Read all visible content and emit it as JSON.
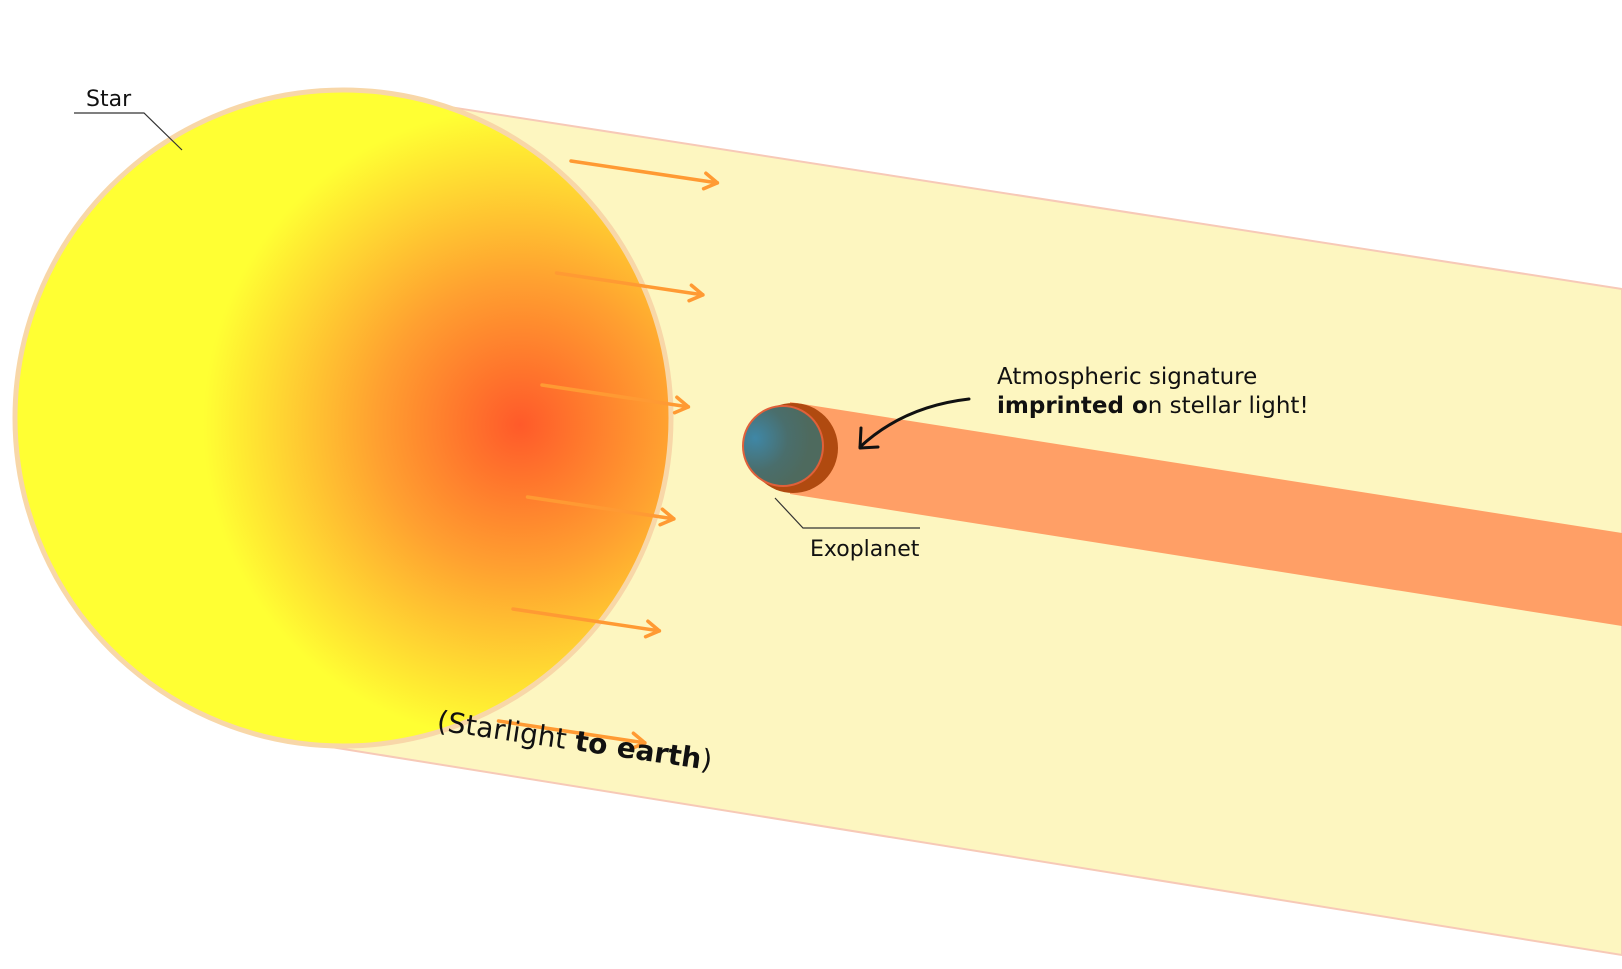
{
  "labels": {
    "star": "Star",
    "exoplanet": "Exoplanet",
    "signature_line1": "Atmospheric signature",
    "signature_line2_bold": "imprinted o",
    "signature_line2_rest": "n stellar light!",
    "starlight_open": "(Starlight ",
    "starlight_bold": "to earth",
    "starlight_close": ")"
  },
  "colors": {
    "beam": "#fdf6c0",
    "beam_edge": "#f7c9b7",
    "star_core": "#ff5a2a",
    "star_mid": "#ffa030",
    "star_outer": "#ffff33",
    "star_rim": "#f8d7a8",
    "arrow": "#ff9a33",
    "atmosphere_band": "#ff9f66",
    "planet_shadow": "#b04a10",
    "planet_body": "#4a6e6c",
    "planet_highlight": "#3f87a6",
    "planet_rim": "#e0603a"
  },
  "arrow_count": 6
}
